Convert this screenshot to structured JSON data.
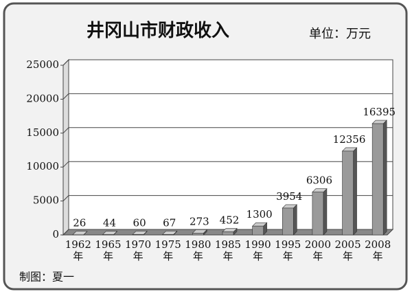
{
  "chart_data": {
    "type": "bar3d",
    "title": "井冈山市财政收入",
    "subtitle": "单位：万元",
    "footer": "制图：夏一",
    "categories": [
      "1962\n年",
      "1965\n年",
      "1970\n年",
      "1975\n年",
      "1980\n年",
      "1985\n年",
      "1990\n年",
      "1995\n年",
      "2000\n年",
      "2005\n年",
      "2008\n年"
    ],
    "values": [
      26,
      44,
      60,
      67,
      273,
      452,
      1300,
      3954,
      6306,
      12356,
      16395
    ],
    "color": "#9a9a9a",
    "ylim": [
      0,
      25000
    ],
    "yticks": [
      0,
      5000,
      10000,
      15000,
      20000,
      25000
    ],
    "grid": true
  }
}
